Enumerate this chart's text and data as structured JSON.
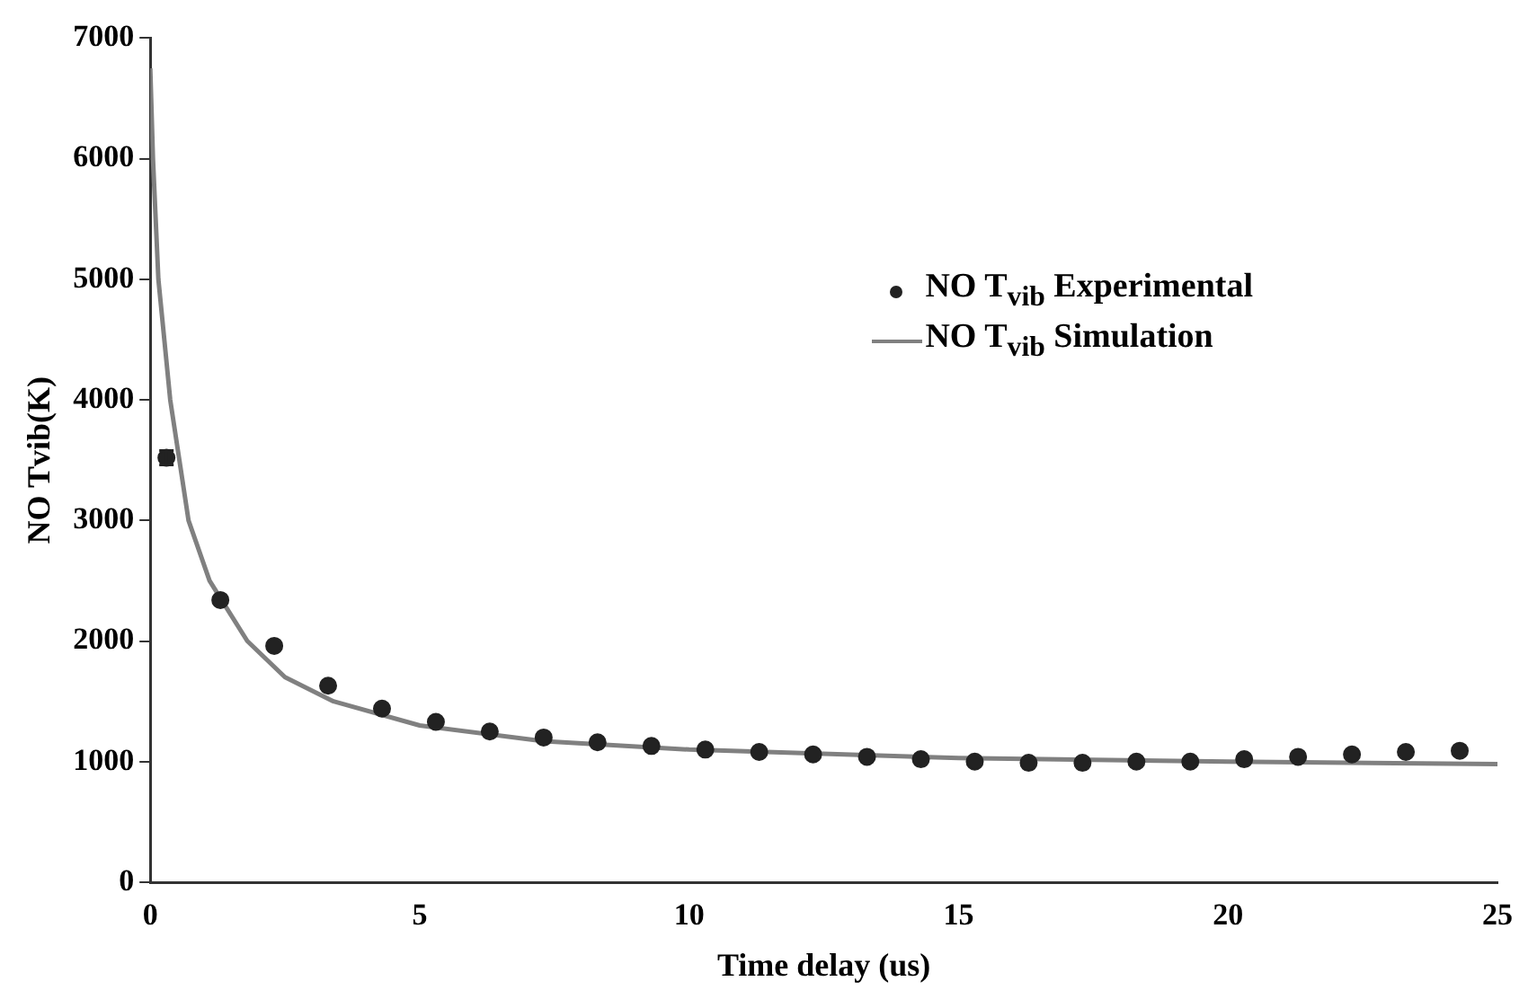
{
  "chart_data": {
    "type": "scatter",
    "xlabel": "Time delay (us)",
    "ylabel": "NO Tvib(K)",
    "xlim": [
      0,
      25
    ],
    "xticks": [
      0,
      5,
      10,
      15,
      20,
      25
    ],
    "ylim": [
      0,
      7000
    ],
    "yticks": [
      0,
      1000,
      2000,
      3000,
      4000,
      5000,
      6000,
      7000
    ],
    "grid": false,
    "legend": "top right",
    "series": [
      {
        "name": "NO T$_{vib}$ Experimental",
        "type": "scatter",
        "color": "#222222",
        "marker": "circle",
        "x": [
          0.3,
          1.3,
          2.3,
          3.3,
          4.3,
          5.3,
          6.3,
          7.3,
          8.3,
          9.3,
          10.3,
          11.3,
          12.3,
          13.3,
          14.3,
          15.3,
          16.3,
          17.3,
          18.3,
          19.3,
          20.3,
          21.3,
          22.3,
          23.3,
          24.3
        ],
        "values": [
          3520,
          2340,
          1960,
          1630,
          1440,
          1330,
          1250,
          1200,
          1160,
          1130,
          1100,
          1080,
          1060,
          1040,
          1020,
          1000,
          990,
          990,
          1000,
          1000,
          1020,
          1040,
          1060,
          1080,
          1090
        ],
        "errors": [
          60,
          null,
          null,
          null,
          null,
          null,
          null,
          null,
          null,
          null,
          null,
          null,
          null,
          null,
          null,
          null,
          null,
          null,
          null,
          null,
          null,
          null,
          null,
          null,
          null
        ]
      },
      {
        "name": "NO T$_{vib}$ Simulation",
        "type": "line",
        "color": "#808080",
        "marker": "none",
        "line_style": "solid",
        "x": [
          0,
          0.05,
          0.15,
          0.37,
          0.71,
          1.1,
          1.8,
          2.5,
          3.4,
          5,
          7.3,
          10,
          15,
          20,
          25
        ],
        "values": [
          6750,
          6000,
          5000,
          4000,
          3000,
          2500,
          2000,
          1700,
          1500,
          1300,
          1170,
          1100,
          1030,
          1000,
          980
        ]
      }
    ]
  }
}
